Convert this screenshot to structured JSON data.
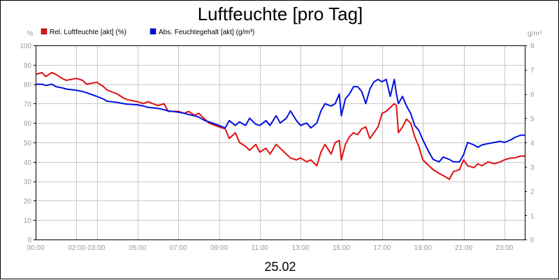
{
  "chart_data": {
    "type": "line",
    "title": "Luftfeuchte [pro Tag]",
    "date_label": "25.02",
    "left_unit": "%",
    "right_unit": "g/m³",
    "legend_position": "top-left",
    "grid": true,
    "x_axis": {
      "range_hours": [
        0,
        24
      ],
      "ticks": [
        {
          "pos": 0,
          "label": "00:00"
        },
        {
          "pos": 2.5,
          "label": "02:00 03:00"
        },
        {
          "pos": 5,
          "label": "05:00"
        },
        {
          "pos": 7,
          "label": "07:00"
        },
        {
          "pos": 9,
          "label": "09:00"
        },
        {
          "pos": 11,
          "label": "11:00"
        },
        {
          "pos": 13,
          "label": "13:00"
        },
        {
          "pos": 15,
          "label": "15:00"
        },
        {
          "pos": 17,
          "label": "17:00"
        },
        {
          "pos": 19,
          "label": "19:00"
        },
        {
          "pos": 21,
          "label": "21:00"
        },
        {
          "pos": 23,
          "label": "23:00"
        }
      ],
      "gridlines": [
        0,
        2,
        3,
        5,
        7,
        9,
        11,
        13,
        15,
        17,
        19,
        21,
        23
      ]
    },
    "y_left": {
      "range": [
        0,
        100
      ],
      "ticks": [
        "0",
        "10",
        "20",
        "30",
        "40",
        "50",
        "60",
        "70",
        "80",
        "90",
        "100"
      ]
    },
    "y_right": {
      "range": [
        0,
        8
      ],
      "ticks": [
        "0",
        "1",
        "2",
        "3",
        "4",
        "5",
        "6",
        "7",
        "8"
      ]
    },
    "series": [
      {
        "name": "Rel. Luftfeuchte [akt] (%)",
        "color": "#e01010",
        "axis": "left",
        "x": [
          0,
          0.3,
          0.5,
          0.8,
          1.0,
          1.3,
          1.5,
          2.0,
          2.3,
          2.5,
          3.0,
          3.3,
          3.5,
          4.0,
          4.3,
          4.5,
          5.0,
          5.3,
          5.5,
          6.0,
          6.3,
          6.5,
          7.0,
          7.3,
          7.5,
          7.8,
          8.0,
          8.3,
          8.5,
          9.0,
          9.3,
          9.5,
          9.8,
          10.0,
          10.3,
          10.5,
          10.8,
          11.0,
          11.3,
          11.5,
          11.8,
          12.0,
          12.3,
          12.5,
          12.8,
          13.0,
          13.3,
          13.5,
          13.8,
          14.0,
          14.2,
          14.5,
          14.7,
          14.9,
          15.0,
          15.2,
          15.4,
          15.6,
          15.8,
          16.0,
          16.2,
          16.4,
          16.6,
          16.8,
          17.0,
          17.2,
          17.4,
          17.6,
          17.7,
          17.8,
          18.0,
          18.2,
          18.4,
          18.6,
          18.8,
          19.0,
          19.3,
          19.5,
          19.8,
          20.0,
          20.3,
          20.5,
          20.8,
          21.0,
          21.2,
          21.5,
          21.7,
          21.9,
          22.2,
          22.5,
          22.8,
          23.0,
          23.3,
          23.5,
          23.8,
          24.0
        ],
        "values": [
          85,
          86,
          84,
          86,
          85,
          83,
          82,
          83,
          82,
          80,
          81,
          79,
          77,
          75,
          73,
          72,
          71,
          70,
          71,
          69,
          70,
          66,
          66,
          65,
          66,
          64,
          65,
          62,
          60,
          58,
          57,
          52,
          55,
          50,
          48,
          46,
          49,
          45,
          47,
          44,
          49,
          47,
          44,
          42,
          41,
          42,
          40,
          41,
          38,
          45,
          49,
          44,
          50,
          51,
          41,
          49,
          53,
          55,
          54,
          57,
          58,
          52,
          55,
          58,
          65,
          66,
          68,
          70,
          69,
          55,
          58,
          62,
          60,
          53,
          48,
          41,
          38,
          36,
          34,
          33,
          31,
          35,
          36,
          41,
          38,
          37,
          39,
          38,
          40,
          39,
          40,
          41,
          42,
          42,
          43,
          43
        ]
      },
      {
        "name": "Abs. Feuchtegehalt [akt] (g/m³)",
        "color": "#0010e0",
        "axis": "right",
        "x": [
          0,
          0.3,
          0.5,
          0.8,
          1.0,
          1.3,
          1.5,
          2.0,
          2.3,
          2.5,
          3.0,
          3.3,
          3.5,
          4.0,
          4.3,
          4.5,
          5.0,
          5.3,
          5.5,
          6.0,
          6.3,
          6.5,
          7.0,
          7.3,
          7.5,
          7.8,
          8.0,
          8.3,
          8.5,
          9.0,
          9.3,
          9.5,
          9.8,
          10.0,
          10.3,
          10.5,
          10.8,
          11.0,
          11.3,
          11.5,
          11.8,
          12.0,
          12.3,
          12.5,
          12.8,
          13.0,
          13.3,
          13.5,
          13.8,
          14.0,
          14.2,
          14.5,
          14.7,
          14.9,
          15.0,
          15.2,
          15.4,
          15.6,
          15.8,
          16.0,
          16.2,
          16.4,
          16.6,
          16.8,
          17.0,
          17.2,
          17.4,
          17.6,
          17.7,
          17.8,
          18.0,
          18.2,
          18.4,
          18.6,
          18.8,
          19.0,
          19.3,
          19.5,
          19.8,
          20.0,
          20.3,
          20.5,
          20.8,
          21.0,
          21.2,
          21.5,
          21.7,
          21.9,
          22.2,
          22.5,
          22.8,
          23.0,
          23.3,
          23.5,
          23.8,
          24.0
        ],
        "values": [
          6.4,
          6.4,
          6.35,
          6.4,
          6.3,
          6.25,
          6.2,
          6.15,
          6.1,
          6.05,
          5.9,
          5.8,
          5.7,
          5.65,
          5.6,
          5.58,
          5.55,
          5.5,
          5.45,
          5.4,
          5.35,
          5.3,
          5.25,
          5.2,
          5.15,
          5.1,
          5.05,
          4.9,
          4.85,
          4.7,
          4.6,
          4.9,
          4.7,
          4.85,
          4.7,
          5.0,
          4.75,
          4.7,
          4.9,
          4.7,
          5.1,
          4.8,
          5.0,
          5.3,
          4.9,
          4.7,
          4.8,
          4.6,
          4.8,
          5.3,
          5.6,
          5.5,
          5.6,
          6.0,
          5.1,
          5.8,
          6.0,
          6.3,
          6.3,
          6.1,
          5.6,
          6.2,
          6.5,
          6.6,
          6.5,
          6.6,
          5.9,
          6.6,
          6.0,
          5.6,
          5.9,
          5.5,
          5.2,
          4.7,
          4.5,
          4.1,
          3.6,
          3.3,
          3.2,
          3.4,
          3.3,
          3.2,
          3.2,
          3.5,
          4.0,
          3.9,
          3.8,
          3.9,
          3.95,
          4.0,
          4.05,
          4.0,
          4.1,
          4.2,
          4.3,
          4.3
        ]
      }
    ]
  }
}
